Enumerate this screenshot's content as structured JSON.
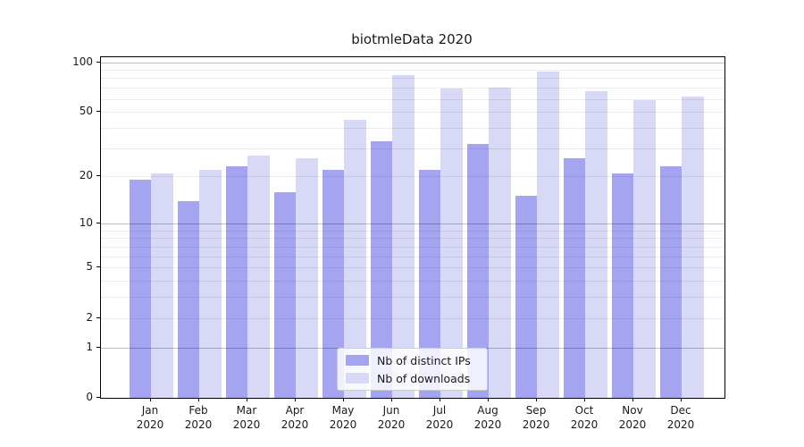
{
  "chart_data": {
    "type": "bar",
    "title": "biotmleData 2020",
    "year_label": "2020",
    "categories": [
      "Jan",
      "Feb",
      "Mar",
      "Apr",
      "May",
      "Jun",
      "Jul",
      "Aug",
      "Sep",
      "Oct",
      "Nov",
      "Dec"
    ],
    "series": [
      {
        "name": "Nb of distinct IPs",
        "color": "#a4a4f1",
        "values": [
          19,
          14,
          23,
          16,
          22,
          33,
          22,
          32,
          15,
          26,
          21,
          23
        ]
      },
      {
        "name": "Nb of downloads",
        "color": "#d8d8f7",
        "values": [
          21,
          22,
          27,
          26,
          45,
          84,
          69,
          70,
          88,
          67,
          59,
          62
        ]
      }
    ],
    "xlabel": "",
    "ylabel": "",
    "y_scale": "log1p",
    "ylim": [
      0,
      107
    ],
    "y_ticks": [
      0,
      1,
      2,
      5,
      10,
      20,
      50,
      100
    ],
    "y_major_gridlines": [
      1,
      10,
      100
    ],
    "y_minor_gridlines": [
      2,
      3,
      4,
      5,
      6,
      7,
      8,
      9,
      20,
      30,
      40,
      50,
      60,
      70,
      80,
      90
    ],
    "grid": true,
    "legend_position": "lower center"
  }
}
